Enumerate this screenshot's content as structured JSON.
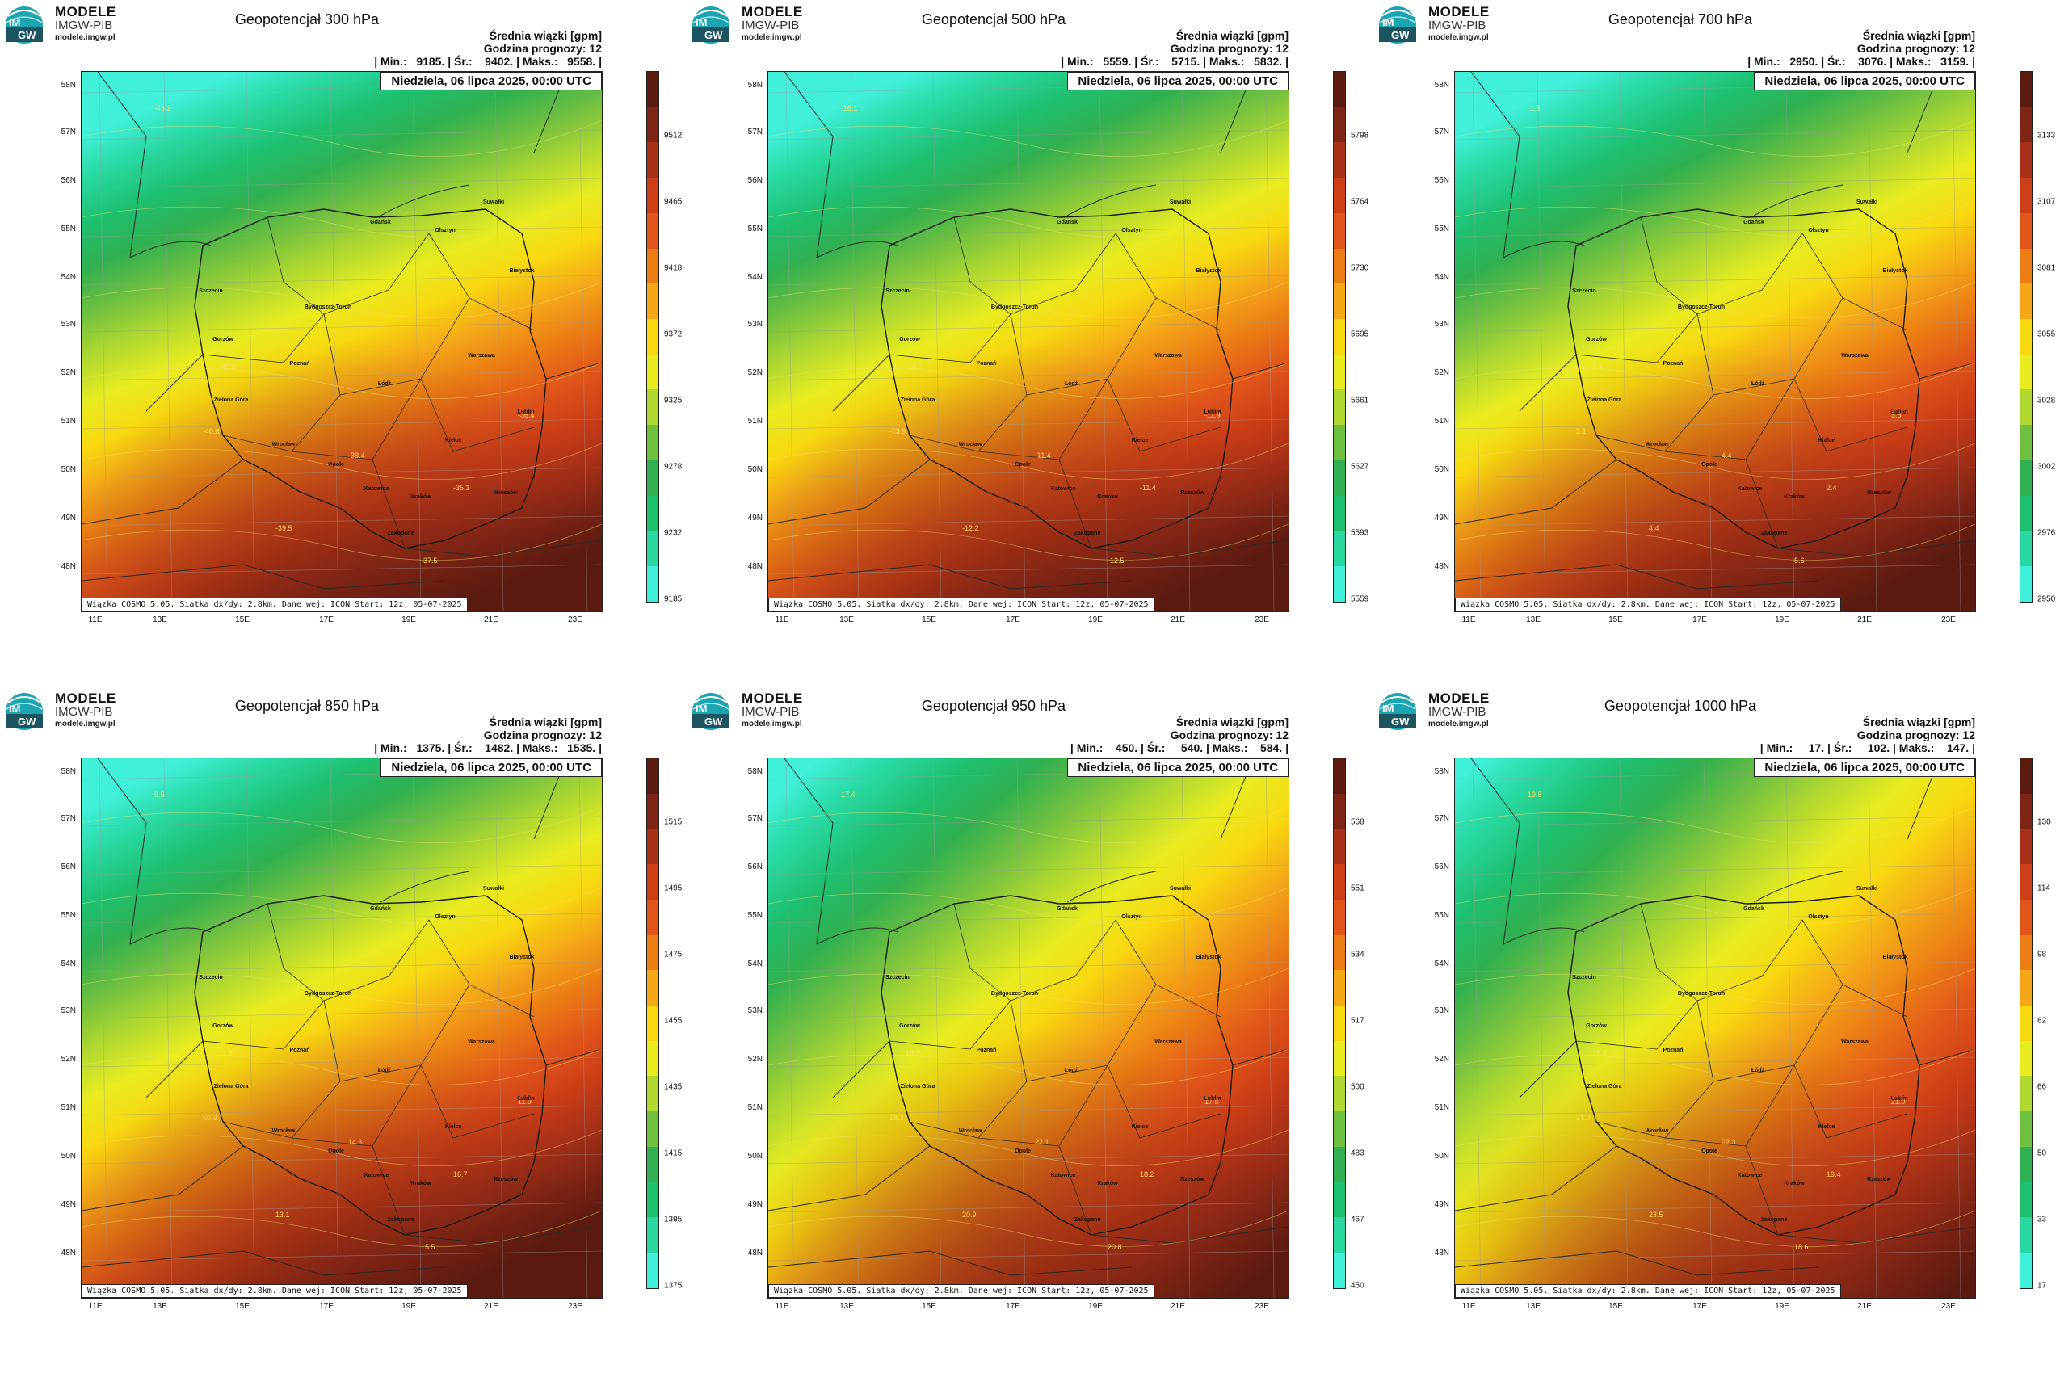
{
  "logo": {
    "line1": "MODELE",
    "line2": "IMGW-PIB",
    "line3": "modele.imgw.pl"
  },
  "common": {
    "srednia": "Średnia wiązki [gpm]",
    "godzina": "Godzina prognozy: 12",
    "date": "Niedziela, 06 lipca 2025, 00:00 UTC",
    "footer": "Wiązka COSMO 5.05. Siatka dx/dy: 2.8km. Dane wej: ICON Start: 12z, 05-07-2025"
  },
  "lat_labels": [
    "58N",
    "57N",
    "56N",
    "55N",
    "54N",
    "53N",
    "52N",
    "51N",
    "50N",
    "49N",
    "48N"
  ],
  "lon_labels": [
    "11E",
    "13E",
    "15E",
    "17E",
    "19E",
    "21E",
    "23E"
  ],
  "cities": [
    {
      "name": "Gdańsk"
    },
    {
      "name": "Olsztyn"
    },
    {
      "name": "Suwałki"
    },
    {
      "name": "Szczecin"
    },
    {
      "name": "Białystok"
    },
    {
      "name": "Bydgoszcz-Toruń"
    },
    {
      "name": "Gorzów"
    },
    {
      "name": "Poznań"
    },
    {
      "name": "Warszawa"
    },
    {
      "name": "Zielona Góra"
    },
    {
      "name": "Łódź"
    },
    {
      "name": "Lublin"
    },
    {
      "name": "Wrocław"
    },
    {
      "name": "Kielce"
    },
    {
      "name": "Opole"
    },
    {
      "name": "Katowice"
    },
    {
      "name": "Kraków"
    },
    {
      "name": "Rzeszów"
    },
    {
      "name": "Zakopane"
    }
  ],
  "palette": [
    "#40f0d8",
    "#28d8a0",
    "#1ec070",
    "#30b050",
    "#70c040",
    "#b0d830",
    "#e8ec20",
    "#f8d810",
    "#f4a818",
    "#ec7c14",
    "#e0561a",
    "#cc3e16",
    "#a83018",
    "#7e2414",
    "#5a1a10"
  ],
  "panels": [
    {
      "title": "Geopotencjał 300 hPa",
      "minmax": "| Min.:   9185. | Śr.:    9402. | Maks.:   9558. |",
      "ticks": [
        "9185",
        "9232",
        "9278",
        "9325",
        "9372",
        "9418",
        "9465",
        "9512"
      ],
      "iso_labels": [
        "-43.2",
        "-40.6",
        "-40.0",
        "-39.5",
        "-38.4",
        "-37.5",
        "-35.1",
        "-36.4"
      ]
    },
    {
      "title": "Geopotencjał 500 hPa",
      "minmax": "| Min.:   5559. | Śr.:    5715. | Maks.:   5832. |",
      "ticks": [
        "5559",
        "5593",
        "5627",
        "5661",
        "5695",
        "5730",
        "5764",
        "5798"
      ],
      "iso_labels": [
        "-16.1",
        "-13.9",
        "-13.0",
        "-12.2",
        "-11.4",
        "-12.5",
        "-11.4",
        "-11.9"
      ]
    },
    {
      "title": "Geopotencjał 700 hPa",
      "minmax": "| Min.:   2950. | Śr.:    3076. | Maks.:   3159. |",
      "ticks": [
        "2950",
        "2976",
        "3002",
        "3028",
        "3055",
        "3081",
        "3107",
        "3133"
      ],
      "iso_labels": [
        "-1.3",
        "3.1",
        "3.3",
        "4.4",
        "4.4",
        "5.6",
        "2.4",
        "5.6"
      ]
    },
    {
      "title": "Geopotencjał 850 hPa",
      "minmax": "| Min.:   1375. | Śr.:    1482. | Maks.:   1535. |",
      "ticks": [
        "1375",
        "1395",
        "1415",
        "1435",
        "1455",
        "1475",
        "1495",
        "1515"
      ],
      "iso_labels": [
        "9.5",
        "10.9",
        "11.9",
        "13.1",
        "14.3",
        "15.5",
        "16.7",
        "11.9"
      ]
    },
    {
      "title": "Geopotencjał 950 hPa",
      "minmax": "| Min.:    450. | Śr.:     540. | Maks.:    584. |",
      "ticks": [
        "450",
        "467",
        "483",
        "500",
        "517",
        "534",
        "551",
        "568"
      ],
      "iso_labels": [
        "17.4",
        "18.3",
        "19.3",
        "20.9",
        "22.1",
        "20.8",
        "18.2",
        "17.9"
      ]
    },
    {
      "title": "Geopotencjał 1000 hPa",
      "minmax": "| Min.:     17. | Śr.:     102. | Maks.:    147. |",
      "ticks": [
        "17",
        "33",
        "50",
        "66",
        "82",
        "98",
        "114",
        "130"
      ],
      "iso_labels": [
        "19.8",
        "21.0",
        "22.3",
        "23.5",
        "22.3",
        "18.6",
        "19.4",
        "21.0"
      ]
    }
  ]
}
